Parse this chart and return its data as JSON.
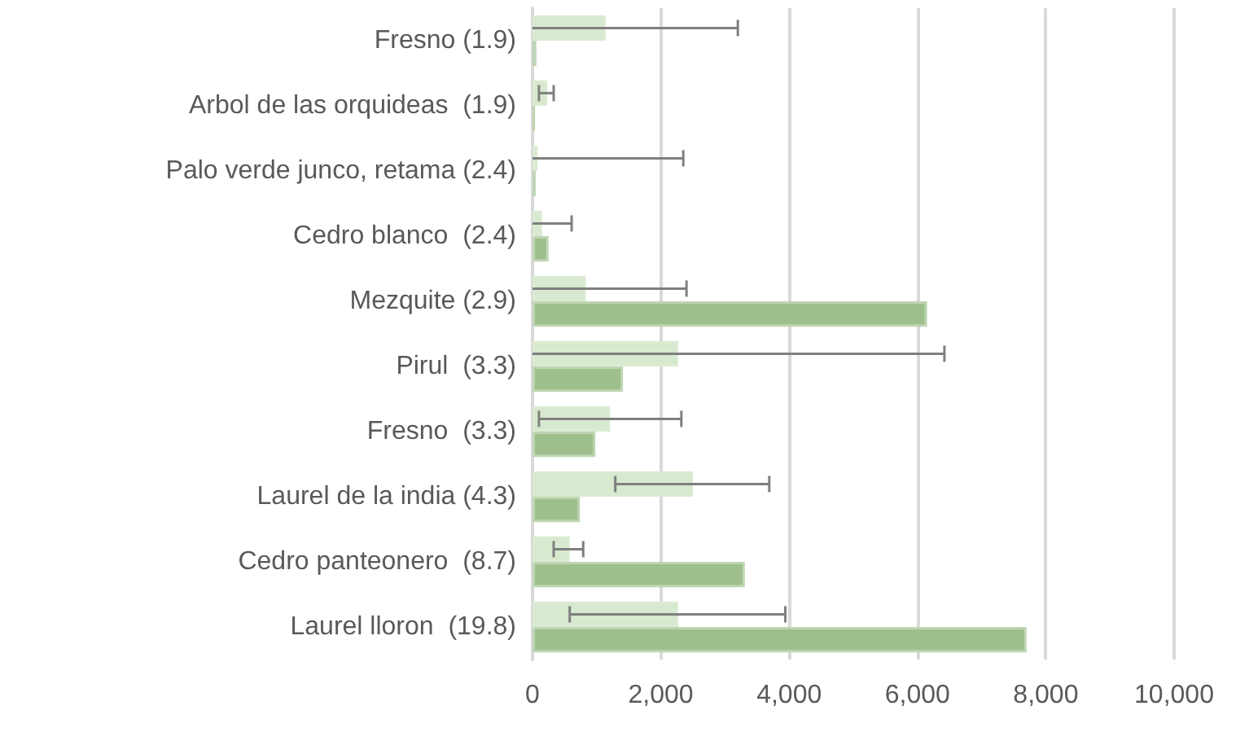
{
  "chart_data": {
    "type": "bar",
    "orientation": "horizontal",
    "categories": [
      "Fresno (1.9)",
      "Arbol de las orquideas  (1.9)",
      "Palo verde junco, retama (2.4)",
      "Cedro blanco  (2.4)",
      "Mezquite (2.9)",
      "Pirul  (3.3)",
      "Fresno  (3.3)",
      "Laurel de la india (4.3)",
      "Cedro panteonero  (8.7)",
      "Laurel lloron  (19.8)"
    ],
    "series": [
      {
        "color": "#d7e9ce",
        "values": [
          1140,
          230,
          80,
          150,
          830,
          2270,
          1210,
          2500,
          580,
          2270
        ],
        "errors": [
          [
            0,
            3200
          ],
          [
            100,
            330
          ],
          [
            0,
            2350
          ],
          [
            0,
            610
          ],
          [
            0,
            2400
          ],
          [
            0,
            6420
          ],
          [
            100,
            2320
          ],
          [
            1290,
            3690
          ],
          [
            330,
            790
          ],
          [
            580,
            3940
          ]
        ]
      },
      {
        "color": "#9dbf8c",
        "values": [
          60,
          40,
          50,
          250,
          6150,
          1410,
          980,
          740,
          3310,
          7700
        ]
      }
    ],
    "xlim": [
      0,
      10000
    ],
    "xticks": [
      0,
      {
        "value": 2000,
        "label": "2,000"
      },
      {
        "value": 4000,
        "label": "4,000"
      },
      {
        "value": 6000,
        "label": "6,000"
      },
      {
        "value": 8000,
        "label": "8,000"
      },
      {
        "value": 10000,
        "label": "10,000"
      }
    ],
    "grid": "x"
  }
}
